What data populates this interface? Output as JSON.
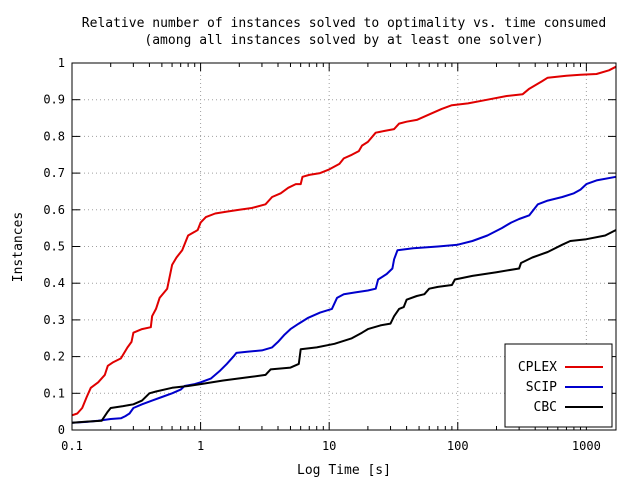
{
  "chart_data": {
    "type": "line",
    "title": "Relative number of instances solved to optimality vs. time consumed",
    "subtitle": "(among all instances solved by at least one solver)",
    "xlabel": "Log Time [s]",
    "ylabel": "Instances",
    "xscale": "log",
    "xlim": [
      0.1,
      1700
    ],
    "ylim": [
      0,
      1
    ],
    "grid": true,
    "legend_position": "bottom-right",
    "x_ticks": [
      {
        "value": 0.1,
        "label": "0.1"
      },
      {
        "value": 1,
        "label": "1"
      },
      {
        "value": 10,
        "label": "10"
      },
      {
        "value": 100,
        "label": "100"
      },
      {
        "value": 1000,
        "label": "1000"
      }
    ],
    "y_ticks": [
      {
        "value": 0,
        "label": "0"
      },
      {
        "value": 0.1,
        "label": "0.1"
      },
      {
        "value": 0.2,
        "label": "0.2"
      },
      {
        "value": 0.3,
        "label": "0.3"
      },
      {
        "value": 0.4,
        "label": "0.4"
      },
      {
        "value": 0.5,
        "label": "0.5"
      },
      {
        "value": 0.6,
        "label": "0.6"
      },
      {
        "value": 0.7,
        "label": "0.7"
      },
      {
        "value": 0.8,
        "label": "0.8"
      },
      {
        "value": 0.9,
        "label": "0.9"
      },
      {
        "value": 1,
        "label": "1"
      }
    ],
    "series": [
      {
        "name": "CPLEX",
        "color": "#e00000",
        "points": [
          [
            0.1,
            0.04
          ],
          [
            0.11,
            0.045
          ],
          [
            0.12,
            0.06
          ],
          [
            0.13,
            0.09
          ],
          [
            0.14,
            0.115
          ],
          [
            0.16,
            0.13
          ],
          [
            0.18,
            0.15
          ],
          [
            0.19,
            0.175
          ],
          [
            0.21,
            0.185
          ],
          [
            0.24,
            0.195
          ],
          [
            0.27,
            0.225
          ],
          [
            0.29,
            0.24
          ],
          [
            0.3,
            0.265
          ],
          [
            0.35,
            0.275
          ],
          [
            0.41,
            0.28
          ],
          [
            0.42,
            0.31
          ],
          [
            0.45,
            0.33
          ],
          [
            0.48,
            0.36
          ],
          [
            0.55,
            0.385
          ],
          [
            0.6,
            0.45
          ],
          [
            0.65,
            0.47
          ],
          [
            0.72,
            0.49
          ],
          [
            0.8,
            0.53
          ],
          [
            0.9,
            0.54
          ],
          [
            0.95,
            0.545
          ],
          [
            1.0,
            0.565
          ],
          [
            1.1,
            0.58
          ],
          [
            1.3,
            0.59
          ],
          [
            1.6,
            0.595
          ],
          [
            2.0,
            0.6
          ],
          [
            2.5,
            0.605
          ],
          [
            3.2,
            0.615
          ],
          [
            3.6,
            0.635
          ],
          [
            4.2,
            0.645
          ],
          [
            4.8,
            0.66
          ],
          [
            5.5,
            0.67
          ],
          [
            6.0,
            0.67
          ],
          [
            6.2,
            0.69
          ],
          [
            7.0,
            0.695
          ],
          [
            8.5,
            0.7
          ],
          [
            10,
            0.71
          ],
          [
            12,
            0.725
          ],
          [
            13,
            0.74
          ],
          [
            15,
            0.75
          ],
          [
            17,
            0.76
          ],
          [
            18,
            0.775
          ],
          [
            20,
            0.785
          ],
          [
            23,
            0.81
          ],
          [
            27,
            0.815
          ],
          [
            32,
            0.82
          ],
          [
            35,
            0.835
          ],
          [
            40,
            0.84
          ],
          [
            48,
            0.845
          ],
          [
            60,
            0.86
          ],
          [
            75,
            0.875
          ],
          [
            90,
            0.885
          ],
          [
            120,
            0.89
          ],
          [
            170,
            0.9
          ],
          [
            240,
            0.91
          ],
          [
            320,
            0.915
          ],
          [
            360,
            0.93
          ],
          [
            450,
            0.95
          ],
          [
            500,
            0.96
          ],
          [
            700,
            0.965
          ],
          [
            900,
            0.968
          ],
          [
            1200,
            0.97
          ],
          [
            1500,
            0.98
          ],
          [
            1700,
            0.99
          ]
        ]
      },
      {
        "name": "SCIP",
        "color": "#0000cc",
        "points": [
          [
            0.1,
            0.02
          ],
          [
            0.13,
            0.022
          ],
          [
            0.16,
            0.025
          ],
          [
            0.2,
            0.03
          ],
          [
            0.24,
            0.032
          ],
          [
            0.26,
            0.038
          ],
          [
            0.28,
            0.045
          ],
          [
            0.3,
            0.06
          ],
          [
            0.35,
            0.07
          ],
          [
            0.42,
            0.08
          ],
          [
            0.5,
            0.09
          ],
          [
            0.6,
            0.1
          ],
          [
            0.7,
            0.11
          ],
          [
            0.75,
            0.12
          ],
          [
            0.9,
            0.125
          ],
          [
            1.0,
            0.13
          ],
          [
            1.2,
            0.14
          ],
          [
            1.4,
            0.16
          ],
          [
            1.6,
            0.18
          ],
          [
            1.8,
            0.2
          ],
          [
            1.9,
            0.21
          ],
          [
            2.3,
            0.213
          ],
          [
            3.0,
            0.217
          ],
          [
            3.6,
            0.225
          ],
          [
            4.0,
            0.24
          ],
          [
            4.5,
            0.26
          ],
          [
            5.0,
            0.275
          ],
          [
            5.8,
            0.29
          ],
          [
            6.8,
            0.305
          ],
          [
            8.5,
            0.32
          ],
          [
            10.5,
            0.33
          ],
          [
            11.5,
            0.36
          ],
          [
            13,
            0.37
          ],
          [
            16,
            0.375
          ],
          [
            20,
            0.38
          ],
          [
            23,
            0.385
          ],
          [
            24,
            0.41
          ],
          [
            28,
            0.425
          ],
          [
            31,
            0.44
          ],
          [
            32,
            0.465
          ],
          [
            34,
            0.49
          ],
          [
            45,
            0.495
          ],
          [
            70,
            0.5
          ],
          [
            100,
            0.505
          ],
          [
            130,
            0.515
          ],
          [
            170,
            0.53
          ],
          [
            220,
            0.55
          ],
          [
            260,
            0.565
          ],
          [
            300,
            0.575
          ],
          [
            360,
            0.585
          ],
          [
            420,
            0.615
          ],
          [
            500,
            0.625
          ],
          [
            650,
            0.635
          ],
          [
            800,
            0.645
          ],
          [
            900,
            0.655
          ],
          [
            1000,
            0.67
          ],
          [
            1200,
            0.68
          ],
          [
            1700,
            0.69
          ]
        ]
      },
      {
        "name": "CBC",
        "color": "#000000",
        "points": [
          [
            0.1,
            0.02
          ],
          [
            0.13,
            0.023
          ],
          [
            0.17,
            0.025
          ],
          [
            0.19,
            0.05
          ],
          [
            0.2,
            0.06
          ],
          [
            0.25,
            0.065
          ],
          [
            0.3,
            0.07
          ],
          [
            0.35,
            0.08
          ],
          [
            0.4,
            0.1
          ],
          [
            0.45,
            0.105
          ],
          [
            0.6,
            0.115
          ],
          [
            0.8,
            0.12
          ],
          [
            1.0,
            0.125
          ],
          [
            1.5,
            0.135
          ],
          [
            2.5,
            0.145
          ],
          [
            3.2,
            0.15
          ],
          [
            3.5,
            0.165
          ],
          [
            5.0,
            0.17
          ],
          [
            5.8,
            0.18
          ],
          [
            6.0,
            0.22
          ],
          [
            8.0,
            0.225
          ],
          [
            11,
            0.235
          ],
          [
            15,
            0.25
          ],
          [
            18,
            0.265
          ],
          [
            20,
            0.275
          ],
          [
            25,
            0.285
          ],
          [
            30,
            0.29
          ],
          [
            32,
            0.31
          ],
          [
            35,
            0.33
          ],
          [
            38,
            0.335
          ],
          [
            40,
            0.355
          ],
          [
            48,
            0.365
          ],
          [
            55,
            0.37
          ],
          [
            60,
            0.385
          ],
          [
            70,
            0.39
          ],
          [
            90,
            0.395
          ],
          [
            95,
            0.41
          ],
          [
            130,
            0.42
          ],
          [
            200,
            0.43
          ],
          [
            300,
            0.44
          ],
          [
            310,
            0.455
          ],
          [
            380,
            0.47
          ],
          [
            500,
            0.485
          ],
          [
            650,
            0.505
          ],
          [
            750,
            0.515
          ],
          [
            1000,
            0.52
          ],
          [
            1400,
            0.53
          ],
          [
            1700,
            0.545
          ]
        ]
      }
    ]
  }
}
